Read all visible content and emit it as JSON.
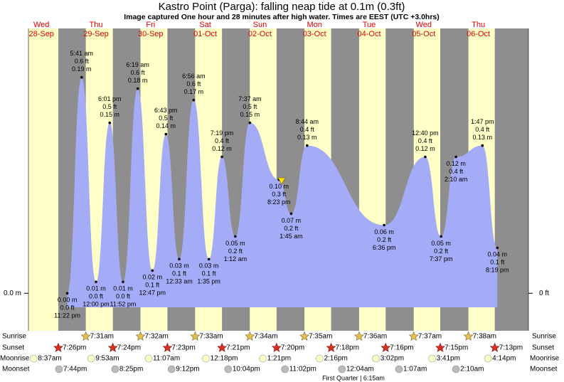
{
  "chart_data": {
    "type": "tide",
    "title": "Kastro Point (Parga): falling  neap tide at 0.1m (0.3ft)",
    "subtitle": "Image captured One hour and 28 minutes after high water. Times are EEST (UTC +3.0hrs)",
    "ylim": [
      -0.033,
      0.233
    ],
    "yticks": [
      {
        "value": 0,
        "label": "0.0 m"
      }
    ],
    "y2ticks": [
      {
        "value": 0,
        "label": "0 ft"
      }
    ],
    "row_labels": {
      "sunrise": "Sunrise",
      "sunset": "Sunset",
      "moonrise": "Moonrise",
      "moonset": "Moonset"
    },
    "moon_phase": "First Quarter | 6:15am",
    "days": [
      {
        "name": "Wed",
        "date": "28-Sep",
        "sunset": "7:26pm",
        "moonrise": "8:37am",
        "moonset": "7:44pm",
        "tides": [
          {
            "time": "11:22 pm",
            "height": 0.0,
            "height_label": "0.00 m",
            "ft": "0.0 ft"
          }
        ]
      },
      {
        "name": "Thu",
        "date": "29-Sep",
        "sunrise": "7:31am",
        "sunset": "7:24pm",
        "moonrise": "9:53am",
        "moonset": "8:25pm",
        "tides": [
          {
            "time": "5:41 am",
            "height": 0.19,
            "height_label": "0.19 m",
            "ft": "0.6 ft"
          },
          {
            "time": "12:00 pm",
            "height": 0.01,
            "height_label": "0.01 m",
            "ft": "0.0 ft"
          },
          {
            "time": "6:01 pm",
            "height": 0.15,
            "height_label": "0.15 m",
            "ft": "0.5 ft"
          },
          {
            "time": "11:52 pm",
            "height": 0.01,
            "height_label": "0.01 m",
            "ft": "0.0 ft"
          }
        ]
      },
      {
        "name": "Fri",
        "date": "30-Sep",
        "sunrise": "7:32am",
        "sunset": "7:23pm",
        "moonrise": "11:07am",
        "moonset": "9:12pm",
        "tides": [
          {
            "time": "6:19 am",
            "height": 0.18,
            "height_label": "0.18 m",
            "ft": "0.6 ft"
          },
          {
            "time": "12:47 pm",
            "height": 0.02,
            "height_label": "0.02 m",
            "ft": "0.1 ft"
          },
          {
            "time": "6:43 pm",
            "height": 0.14,
            "height_label": "0.14 m",
            "ft": "0.5 ft"
          }
        ]
      },
      {
        "name": "Sat",
        "date": "01-Oct",
        "sunrise": "7:33am",
        "sunset": "7:21pm",
        "moonrise": "12:18pm",
        "moonset": "10:04pm",
        "tides": [
          {
            "time": "12:33 am",
            "height": 0.03,
            "height_label": "0.03 m",
            "ft": "0.1 ft"
          },
          {
            "time": "6:56 am",
            "height": 0.17,
            "height_label": "0.17 m",
            "ft": "0.6 ft"
          },
          {
            "time": "1:35 pm",
            "height": 0.03,
            "height_label": "0.03 m",
            "ft": "0.1 ft"
          },
          {
            "time": "7:19 pm",
            "height": 0.12,
            "height_label": "0.12 m",
            "ft": "0.4 ft"
          }
        ]
      },
      {
        "name": "Sun",
        "date": "02-Oct",
        "sunrise": "7:34am",
        "sunset": "7:20pm",
        "moonrise": "1:21pm",
        "moonset": "11:02pm",
        "tides": [
          {
            "time": "1:12 am",
            "height": 0.05,
            "height_label": "0.05 m",
            "ft": "0.2 ft"
          },
          {
            "time": "7:37 am",
            "height": 0.15,
            "height_label": "0.15 m",
            "ft": "0.5 ft"
          },
          {
            "time": "8:23 pm",
            "height": 0.1,
            "height_label": "0.10 m",
            "ft": "0.3 ft"
          }
        ]
      },
      {
        "name": "Mon",
        "date": "03-Oct",
        "sunrise": "7:35am",
        "sunset": "7:18pm",
        "moonrise": "2:16pm",
        "tides": [
          {
            "time": "1:45 am",
            "height": 0.07,
            "height_label": "0.07 m",
            "ft": "0.2 ft"
          },
          {
            "time": "8:44 am",
            "height": 0.13,
            "height_label": "0.13 m",
            "ft": "0.4 ft"
          }
        ]
      },
      {
        "name": "Tue",
        "date": "04-Oct",
        "sunrise": "7:36am",
        "sunset": "7:16pm",
        "moonrise": "3:02pm",
        "moonset": "12:04am",
        "tides": [
          {
            "time": "6:36 pm",
            "height": 0.06,
            "height_label": "0.06 m",
            "ft": "0.2 ft"
          }
        ]
      },
      {
        "name": "Wed",
        "date": "05-Oct",
        "sunrise": "7:37am",
        "sunset": "7:15pm",
        "moonrise": "3:41pm",
        "moonset": "1:07am",
        "tides": [
          {
            "time": "12:40 pm",
            "height": 0.12,
            "height_label": "0.12 m",
            "ft": "0.4 ft"
          },
          {
            "time": "7:37 pm",
            "height": 0.05,
            "height_label": "0.05 m",
            "ft": "0.2 ft"
          }
        ]
      },
      {
        "name": "Thu",
        "date": "06-Oct",
        "sunrise": "7:38am",
        "sunset": "7:13pm",
        "moonrise": "4:14pm",
        "moonset": "2:10am",
        "tides": [
          {
            "time": "2:10 am",
            "height": 0.12,
            "height_label": "0.12 m",
            "ft": "0.4 ft"
          },
          {
            "time": "1:47 pm",
            "height": 0.13,
            "height_label": "0.13 m",
            "ft": "0.4 ft"
          },
          {
            "time": "8:19 pm",
            "height": 0.04,
            "height_label": "0.04 m",
            "ft": "0.1 ft"
          }
        ]
      }
    ]
  }
}
